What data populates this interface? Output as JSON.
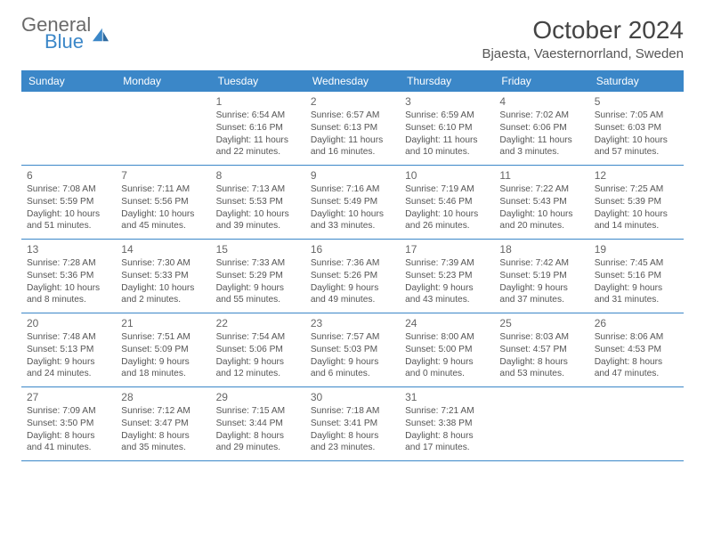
{
  "brand": {
    "word1": "General",
    "word2": "Blue",
    "text_color": "#6a6a6a",
    "accent_color": "#3b87c8"
  },
  "title": "October 2024",
  "location": "Bjaesta, Vaesternorrland, Sweden",
  "headerBg": "#3b87c8",
  "headerFg": "#ffffff",
  "borderColor": "#3b87c8",
  "dayNames": [
    "Sunday",
    "Monday",
    "Tuesday",
    "Wednesday",
    "Thursday",
    "Friday",
    "Saturday"
  ],
  "weeks": [
    [
      null,
      null,
      {
        "n": "1",
        "sr": "6:54 AM",
        "ss": "6:16 PM",
        "dl": "11 hours and 22 minutes."
      },
      {
        "n": "2",
        "sr": "6:57 AM",
        "ss": "6:13 PM",
        "dl": "11 hours and 16 minutes."
      },
      {
        "n": "3",
        "sr": "6:59 AM",
        "ss": "6:10 PM",
        "dl": "11 hours and 10 minutes."
      },
      {
        "n": "4",
        "sr": "7:02 AM",
        "ss": "6:06 PM",
        "dl": "11 hours and 3 minutes."
      },
      {
        "n": "5",
        "sr": "7:05 AM",
        "ss": "6:03 PM",
        "dl": "10 hours and 57 minutes."
      }
    ],
    [
      {
        "n": "6",
        "sr": "7:08 AM",
        "ss": "5:59 PM",
        "dl": "10 hours and 51 minutes."
      },
      {
        "n": "7",
        "sr": "7:11 AM",
        "ss": "5:56 PM",
        "dl": "10 hours and 45 minutes."
      },
      {
        "n": "8",
        "sr": "7:13 AM",
        "ss": "5:53 PM",
        "dl": "10 hours and 39 minutes."
      },
      {
        "n": "9",
        "sr": "7:16 AM",
        "ss": "5:49 PM",
        "dl": "10 hours and 33 minutes."
      },
      {
        "n": "10",
        "sr": "7:19 AM",
        "ss": "5:46 PM",
        "dl": "10 hours and 26 minutes."
      },
      {
        "n": "11",
        "sr": "7:22 AM",
        "ss": "5:43 PM",
        "dl": "10 hours and 20 minutes."
      },
      {
        "n": "12",
        "sr": "7:25 AM",
        "ss": "5:39 PM",
        "dl": "10 hours and 14 minutes."
      }
    ],
    [
      {
        "n": "13",
        "sr": "7:28 AM",
        "ss": "5:36 PM",
        "dl": "10 hours and 8 minutes."
      },
      {
        "n": "14",
        "sr": "7:30 AM",
        "ss": "5:33 PM",
        "dl": "10 hours and 2 minutes."
      },
      {
        "n": "15",
        "sr": "7:33 AM",
        "ss": "5:29 PM",
        "dl": "9 hours and 55 minutes."
      },
      {
        "n": "16",
        "sr": "7:36 AM",
        "ss": "5:26 PM",
        "dl": "9 hours and 49 minutes."
      },
      {
        "n": "17",
        "sr": "7:39 AM",
        "ss": "5:23 PM",
        "dl": "9 hours and 43 minutes."
      },
      {
        "n": "18",
        "sr": "7:42 AM",
        "ss": "5:19 PM",
        "dl": "9 hours and 37 minutes."
      },
      {
        "n": "19",
        "sr": "7:45 AM",
        "ss": "5:16 PM",
        "dl": "9 hours and 31 minutes."
      }
    ],
    [
      {
        "n": "20",
        "sr": "7:48 AM",
        "ss": "5:13 PM",
        "dl": "9 hours and 24 minutes."
      },
      {
        "n": "21",
        "sr": "7:51 AM",
        "ss": "5:09 PM",
        "dl": "9 hours and 18 minutes."
      },
      {
        "n": "22",
        "sr": "7:54 AM",
        "ss": "5:06 PM",
        "dl": "9 hours and 12 minutes."
      },
      {
        "n": "23",
        "sr": "7:57 AM",
        "ss": "5:03 PM",
        "dl": "9 hours and 6 minutes."
      },
      {
        "n": "24",
        "sr": "8:00 AM",
        "ss": "5:00 PM",
        "dl": "9 hours and 0 minutes."
      },
      {
        "n": "25",
        "sr": "8:03 AM",
        "ss": "4:57 PM",
        "dl": "8 hours and 53 minutes."
      },
      {
        "n": "26",
        "sr": "8:06 AM",
        "ss": "4:53 PM",
        "dl": "8 hours and 47 minutes."
      }
    ],
    [
      {
        "n": "27",
        "sr": "7:09 AM",
        "ss": "3:50 PM",
        "dl": "8 hours and 41 minutes."
      },
      {
        "n": "28",
        "sr": "7:12 AM",
        "ss": "3:47 PM",
        "dl": "8 hours and 35 minutes."
      },
      {
        "n": "29",
        "sr": "7:15 AM",
        "ss": "3:44 PM",
        "dl": "8 hours and 29 minutes."
      },
      {
        "n": "30",
        "sr": "7:18 AM",
        "ss": "3:41 PM",
        "dl": "8 hours and 23 minutes."
      },
      {
        "n": "31",
        "sr": "7:21 AM",
        "ss": "3:38 PM",
        "dl": "8 hours and 17 minutes."
      },
      null,
      null
    ]
  ],
  "labels": {
    "sunrise": "Sunrise:",
    "sunset": "Sunset:",
    "daylight": "Daylight:"
  }
}
